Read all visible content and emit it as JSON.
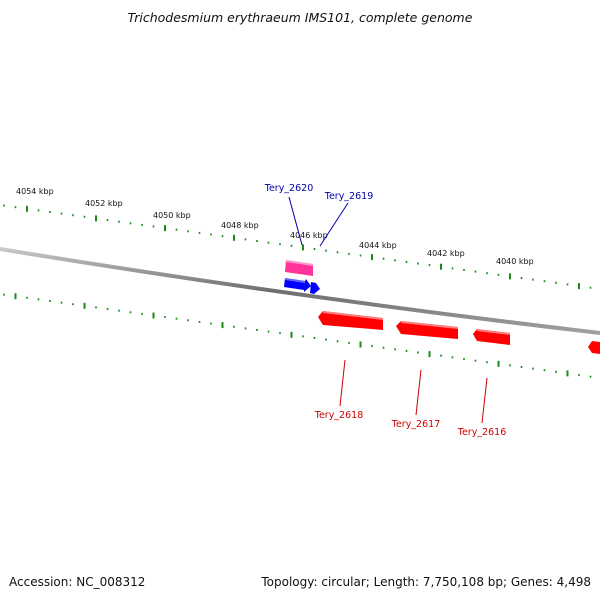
{
  "title": "Trichodesmium erythraeum IMS101, complete genome",
  "footer": {
    "accession": "Accession: NC_008312",
    "summary": "Topology: circular; Length: 7,750,108 bp; Genes: 4,498"
  },
  "colors": {
    "backbone": "#8a8a8a",
    "tick": "#1a8a1a",
    "forward_gene": "#0000ff",
    "forward_gene_alt": "#ff3399",
    "reverse_gene": "#ff0000",
    "forward_label": "#0000aa",
    "reverse_label": "#cc0000"
  },
  "scale": {
    "unit": "kbp",
    "labels": [
      "4054 kbp",
      "4052 kbp",
      "4050 kbp",
      "4048 kbp",
      "4046 kbp",
      "4044 kbp",
      "4042 kbp",
      "4040 kbp"
    ]
  },
  "genes": [
    {
      "name": "Tery_2620",
      "strand": "forward",
      "color": "pink"
    },
    {
      "name": "Tery_2619",
      "strand": "forward",
      "color": "blue"
    },
    {
      "name": "Tery_2618",
      "strand": "reverse",
      "color": "red"
    },
    {
      "name": "Tery_2617",
      "strand": "reverse",
      "color": "red"
    },
    {
      "name": "Tery_2616",
      "strand": "reverse",
      "color": "red"
    }
  ]
}
